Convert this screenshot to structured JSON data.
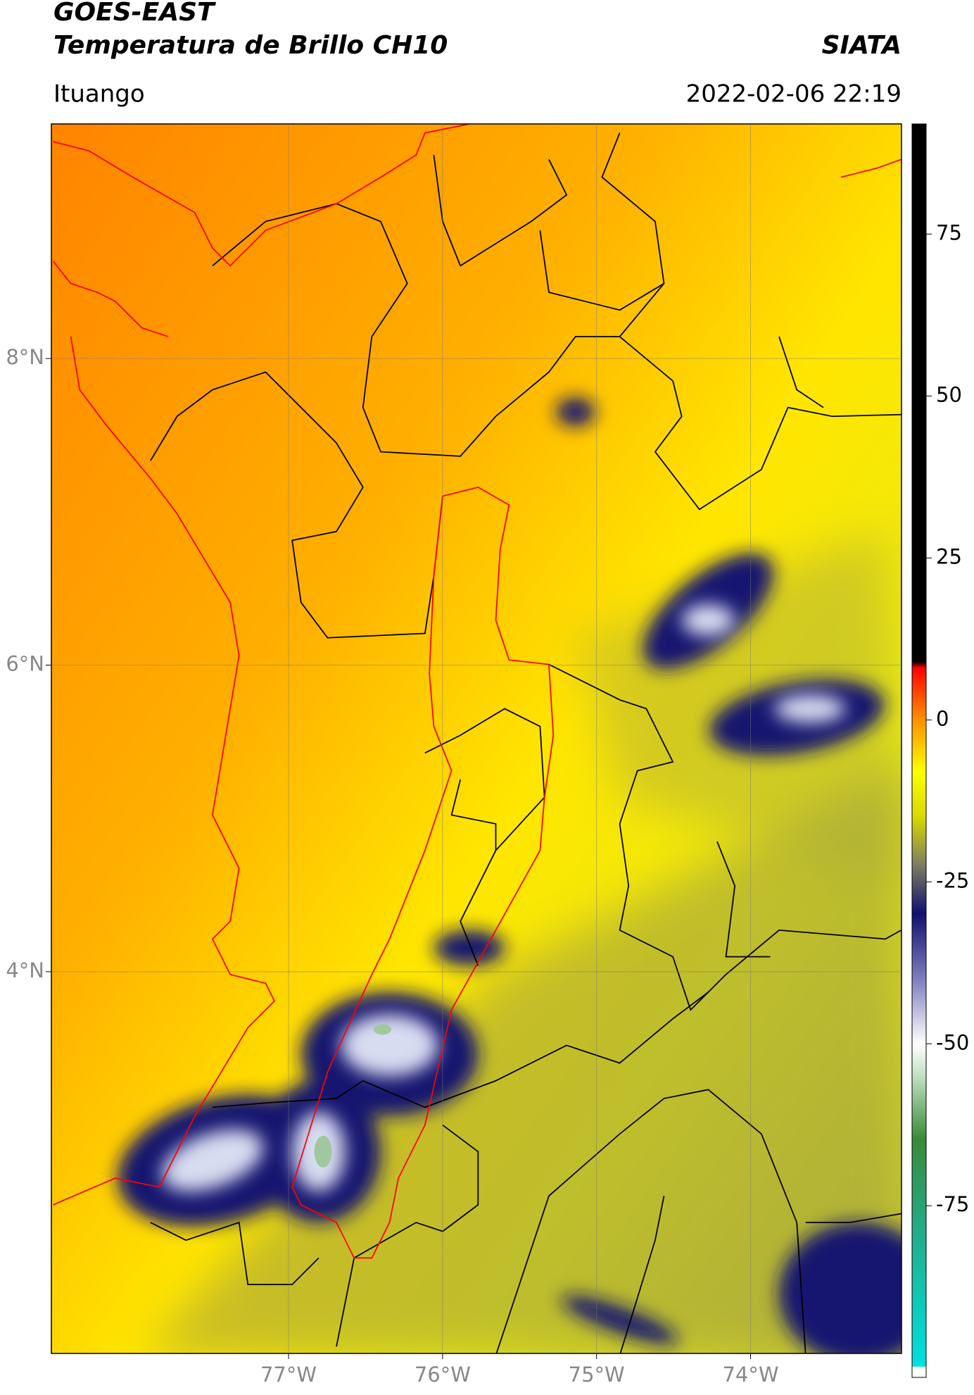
{
  "header": {
    "title": "GOES-EAST",
    "subtitle": "Temperatura de Brillo CH10",
    "source": "SIATA",
    "location": "Ituango",
    "datetime": "2022-02-06 22:19"
  },
  "map": {
    "lonlim": [
      -78.54,
      -73.02
    ],
    "latlim": [
      1.51,
      9.53
    ],
    "lonticks": [
      {
        "value": -77,
        "label": "77°W"
      },
      {
        "value": -76,
        "label": "76°W"
      },
      {
        "value": -75,
        "label": "75°W"
      },
      {
        "value": -74,
        "label": "74°W"
      }
    ],
    "latticks": [
      {
        "value": 4,
        "label": "4°N"
      },
      {
        "value": 6,
        "label": "6°N"
      },
      {
        "value": 8,
        "label": "8°N"
      }
    ],
    "grid": true
  },
  "colorbar": {
    "lim": [
      -101.5,
      92
    ],
    "ticks": [
      -75,
      -50,
      -25,
      0,
      25,
      50,
      75
    ]
  }
}
